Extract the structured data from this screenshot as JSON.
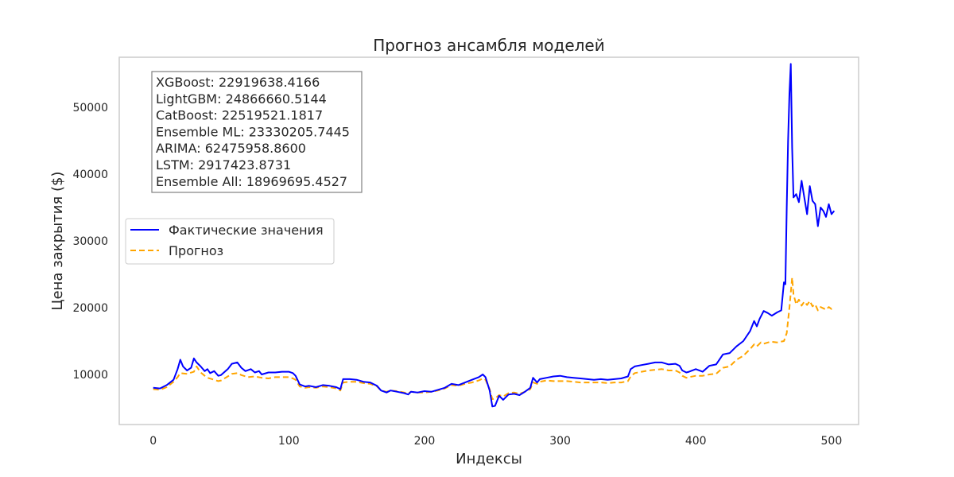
{
  "chart_data": {
    "type": "line",
    "title": "Прогноз ансамбля моделей",
    "xlabel": "Индексы",
    "ylabel": "Цена закрытия ($)",
    "xlim": [
      -25,
      520
    ],
    "ylim": [
      2500,
      57500
    ],
    "xticks": [
      0,
      100,
      200,
      300,
      400,
      500
    ],
    "yticks": [
      10000,
      20000,
      30000,
      40000,
      50000
    ],
    "grid": false,
    "legend_position": "center-left",
    "series": [
      {
        "name": "Фактические значения",
        "color": "#0000ff",
        "style": "solid",
        "points": [
          [
            0,
            8000
          ],
          [
            5,
            7900
          ],
          [
            10,
            8400
          ],
          [
            15,
            9200
          ],
          [
            18,
            10800
          ],
          [
            20,
            12200
          ],
          [
            22,
            11200
          ],
          [
            25,
            10600
          ],
          [
            28,
            11000
          ],
          [
            30,
            12400
          ],
          [
            32,
            11800
          ],
          [
            35,
            11200
          ],
          [
            38,
            10500
          ],
          [
            40,
            10800
          ],
          [
            42,
            10200
          ],
          [
            45,
            10500
          ],
          [
            48,
            9800
          ],
          [
            50,
            9900
          ],
          [
            55,
            10800
          ],
          [
            58,
            11600
          ],
          [
            62,
            11800
          ],
          [
            65,
            11000
          ],
          [
            68,
            10500
          ],
          [
            72,
            10800
          ],
          [
            75,
            10300
          ],
          [
            78,
            10500
          ],
          [
            80,
            10000
          ],
          [
            85,
            10300
          ],
          [
            90,
            10300
          ],
          [
            95,
            10400
          ],
          [
            100,
            10400
          ],
          [
            103,
            10200
          ],
          [
            105,
            9800
          ],
          [
            108,
            8500
          ],
          [
            112,
            8200
          ],
          [
            115,
            8300
          ],
          [
            120,
            8100
          ],
          [
            125,
            8400
          ],
          [
            130,
            8300
          ],
          [
            135,
            8100
          ],
          [
            138,
            7800
          ],
          [
            140,
            9300
          ],
          [
            145,
            9300
          ],
          [
            150,
            9200
          ],
          [
            155,
            8900
          ],
          [
            160,
            8800
          ],
          [
            165,
            8300
          ],
          [
            168,
            7600
          ],
          [
            172,
            7300
          ],
          [
            175,
            7600
          ],
          [
            180,
            7400
          ],
          [
            185,
            7200
          ],
          [
            188,
            7000
          ],
          [
            190,
            7400
          ],
          [
            195,
            7300
          ],
          [
            200,
            7500
          ],
          [
            205,
            7400
          ],
          [
            210,
            7700
          ],
          [
            215,
            8000
          ],
          [
            220,
            8600
          ],
          [
            225,
            8400
          ],
          [
            230,
            8800
          ],
          [
            235,
            9200
          ],
          [
            240,
            9600
          ],
          [
            243,
            10000
          ],
          [
            245,
            9600
          ],
          [
            248,
            7600
          ],
          [
            250,
            5200
          ],
          [
            252,
            5300
          ],
          [
            255,
            6800
          ],
          [
            258,
            6200
          ],
          [
            262,
            7000
          ],
          [
            266,
            7100
          ],
          [
            270,
            6900
          ],
          [
            274,
            7400
          ],
          [
            278,
            8000
          ],
          [
            280,
            9500
          ],
          [
            283,
            8800
          ],
          [
            285,
            9300
          ],
          [
            290,
            9500
          ],
          [
            295,
            9700
          ],
          [
            300,
            9800
          ],
          [
            305,
            9600
          ],
          [
            310,
            9500
          ],
          [
            315,
            9400
          ],
          [
            320,
            9300
          ],
          [
            325,
            9200
          ],
          [
            330,
            9300
          ],
          [
            335,
            9200
          ],
          [
            340,
            9300
          ],
          [
            345,
            9400
          ],
          [
            350,
            9700
          ],
          [
            352,
            10800
          ],
          [
            355,
            11200
          ],
          [
            360,
            11400
          ],
          [
            365,
            11600
          ],
          [
            370,
            11800
          ],
          [
            375,
            11800
          ],
          [
            380,
            11500
          ],
          [
            385,
            11600
          ],
          [
            388,
            11300
          ],
          [
            390,
            10600
          ],
          [
            393,
            10300
          ],
          [
            395,
            10400
          ],
          [
            400,
            10800
          ],
          [
            405,
            10400
          ],
          [
            410,
            11300
          ],
          [
            415,
            11500
          ],
          [
            420,
            13000
          ],
          [
            425,
            13200
          ],
          [
            430,
            14200
          ],
          [
            435,
            15000
          ],
          [
            440,
            16500
          ],
          [
            443,
            18000
          ],
          [
            445,
            17200
          ],
          [
            447,
            18300
          ],
          [
            450,
            19500
          ],
          [
            453,
            19200
          ],
          [
            456,
            18800
          ],
          [
            460,
            19300
          ],
          [
            463,
            19600
          ],
          [
            465,
            23800
          ],
          [
            466,
            23500
          ],
          [
            467,
            35000
          ],
          [
            468,
            45000
          ],
          [
            469,
            52000
          ],
          [
            470,
            56500
          ],
          [
            471,
            44000
          ],
          [
            472,
            36500
          ],
          [
            474,
            37000
          ],
          [
            476,
            35800
          ],
          [
            478,
            39000
          ],
          [
            480,
            36500
          ],
          [
            482,
            34000
          ],
          [
            484,
            38200
          ],
          [
            486,
            36000
          ],
          [
            488,
            35500
          ],
          [
            490,
            32200
          ],
          [
            492,
            35000
          ],
          [
            494,
            34500
          ],
          [
            496,
            33600
          ],
          [
            498,
            35500
          ],
          [
            500,
            34000
          ],
          [
            502,
            34500
          ]
        ]
      },
      {
        "name": "Прогноз",
        "color": "#ffa500",
        "style": "dashed",
        "points": [
          [
            0,
            7800
          ],
          [
            5,
            7700
          ],
          [
            10,
            8100
          ],
          [
            15,
            8900
          ],
          [
            18,
            9600
          ],
          [
            20,
            10200
          ],
          [
            25,
            10100
          ],
          [
            30,
            10400
          ],
          [
            32,
            11200
          ],
          [
            35,
            10300
          ],
          [
            38,
            9800
          ],
          [
            40,
            9500
          ],
          [
            45,
            9200
          ],
          [
            48,
            9000
          ],
          [
            50,
            9100
          ],
          [
            55,
            9700
          ],
          [
            58,
            10100
          ],
          [
            62,
            10200
          ],
          [
            65,
            9900
          ],
          [
            70,
            9600
          ],
          [
            75,
            9700
          ],
          [
            80,
            9500
          ],
          [
            85,
            9400
          ],
          [
            90,
            9600
          ],
          [
            95,
            9600
          ],
          [
            100,
            9600
          ],
          [
            103,
            9400
          ],
          [
            105,
            9200
          ],
          [
            108,
            8200
          ],
          [
            112,
            8000
          ],
          [
            115,
            8100
          ],
          [
            120,
            8000
          ],
          [
            125,
            8200
          ],
          [
            130,
            8100
          ],
          [
            135,
            7900
          ],
          [
            138,
            7600
          ],
          [
            140,
            8800
          ],
          [
            145,
            8900
          ],
          [
            150,
            8900
          ],
          [
            155,
            8700
          ],
          [
            160,
            8600
          ],
          [
            165,
            8200
          ],
          [
            168,
            7600
          ],
          [
            172,
            7400
          ],
          [
            175,
            7600
          ],
          [
            180,
            7500
          ],
          [
            185,
            7300
          ],
          [
            188,
            7200
          ],
          [
            190,
            7400
          ],
          [
            195,
            7300
          ],
          [
            200,
            7300
          ],
          [
            205,
            7400
          ],
          [
            210,
            7600
          ],
          [
            215,
            7900
          ],
          [
            220,
            8400
          ],
          [
            225,
            8300
          ],
          [
            230,
            8600
          ],
          [
            235,
            8800
          ],
          [
            240,
            9100
          ],
          [
            243,
            9400
          ],
          [
            245,
            9200
          ],
          [
            248,
            7800
          ],
          [
            250,
            6300
          ],
          [
            252,
            6400
          ],
          [
            255,
            6900
          ],
          [
            258,
            6700
          ],
          [
            262,
            7200
          ],
          [
            266,
            7300
          ],
          [
            270,
            7100
          ],
          [
            274,
            7400
          ],
          [
            278,
            7800
          ],
          [
            280,
            8800
          ],
          [
            283,
            8600
          ],
          [
            285,
            8900
          ],
          [
            290,
            9100
          ],
          [
            295,
            9000
          ],
          [
            300,
            9000
          ],
          [
            305,
            9000
          ],
          [
            310,
            8900
          ],
          [
            315,
            8800
          ],
          [
            320,
            8800
          ],
          [
            325,
            8800
          ],
          [
            330,
            8800
          ],
          [
            335,
            8700
          ],
          [
            340,
            8800
          ],
          [
            345,
            8800
          ],
          [
            350,
            9000
          ],
          [
            352,
            9700
          ],
          [
            355,
            10200
          ],
          [
            360,
            10400
          ],
          [
            365,
            10600
          ],
          [
            370,
            10700
          ],
          [
            375,
            10800
          ],
          [
            380,
            10600
          ],
          [
            385,
            10600
          ],
          [
            388,
            10300
          ],
          [
            390,
            9800
          ],
          [
            393,
            9500
          ],
          [
            395,
            9600
          ],
          [
            400,
            9800
          ],
          [
            405,
            9800
          ],
          [
            410,
            10000
          ],
          [
            415,
            10100
          ],
          [
            420,
            11000
          ],
          [
            425,
            11200
          ],
          [
            430,
            12200
          ],
          [
            435,
            12800
          ],
          [
            440,
            13800
          ],
          [
            443,
            14500
          ],
          [
            445,
            14200
          ],
          [
            448,
            14800
          ],
          [
            450,
            14600
          ],
          [
            455,
            14900
          ],
          [
            460,
            14800
          ],
          [
            465,
            15000
          ],
          [
            467,
            16200
          ],
          [
            469,
            20000
          ],
          [
            471,
            24500
          ],
          [
            472,
            22000
          ],
          [
            474,
            20500
          ],
          [
            476,
            21200
          ],
          [
            478,
            20300
          ],
          [
            480,
            20900
          ],
          [
            482,
            20400
          ],
          [
            484,
            21000
          ],
          [
            486,
            20200
          ],
          [
            488,
            20500
          ],
          [
            490,
            19600
          ],
          [
            492,
            20100
          ],
          [
            494,
            19900
          ],
          [
            496,
            19700
          ],
          [
            498,
            20100
          ],
          [
            500,
            19800
          ],
          [
            502,
            19900
          ]
        ]
      }
    ],
    "metrics": [
      "XGBoost: 22919638.4166",
      "LightGBM: 24866660.5144",
      "CatBoost: 22519521.1817",
      "Ensemble ML: 23330205.7445",
      "ARIMA: 62475958.8600",
      "LSTM: 2917423.8731",
      "Ensemble All: 18969695.4527"
    ]
  }
}
